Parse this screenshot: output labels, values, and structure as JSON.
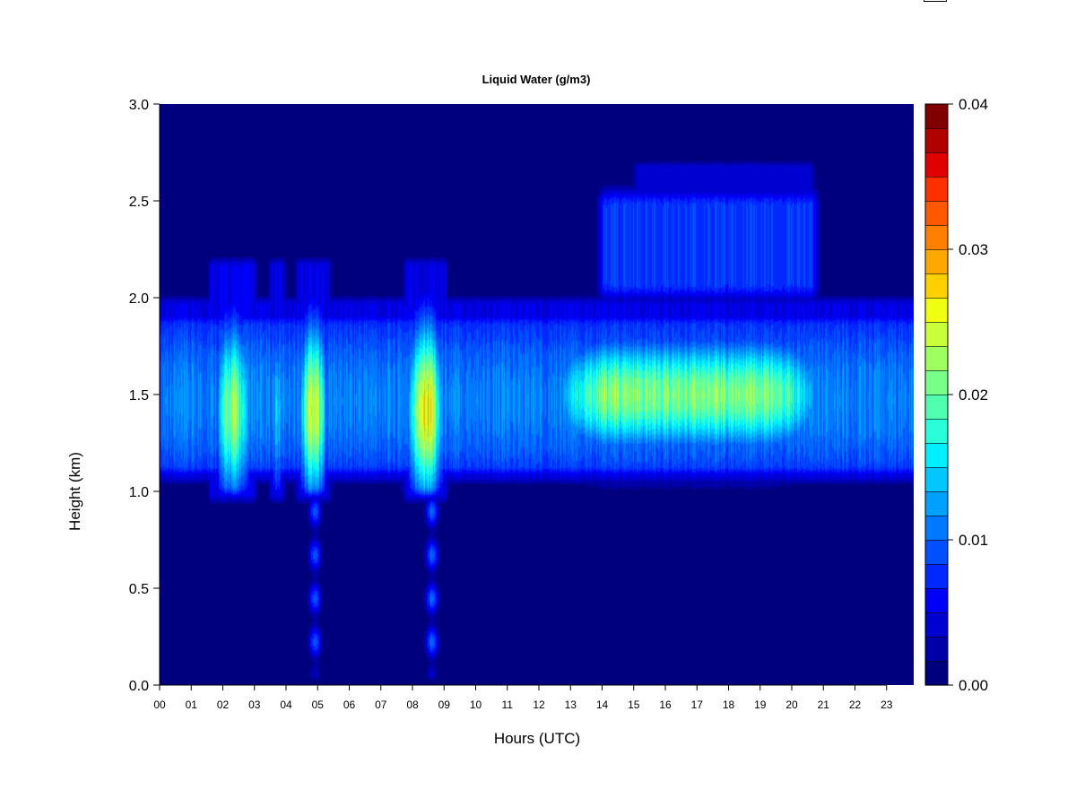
{
  "chart_data": {
    "type": "heatmap",
    "title": "Liquid Water (g/m3)",
    "xlabel": "Hours (UTC)",
    "ylabel": "Height (km)",
    "x_tick_labels": [
      "00",
      "01",
      "02",
      "03",
      "04",
      "05",
      "06",
      "07",
      "08",
      "09",
      "10",
      "11",
      "12",
      "13",
      "14",
      "15",
      "16",
      "17",
      "18",
      "19",
      "20",
      "21",
      "22",
      "23"
    ],
    "y_tick_labels": [
      "0.0",
      "0.5",
      "1.0",
      "1.5",
      "2.0",
      "2.5",
      "3.0"
    ],
    "xlim": [
      0,
      24
    ],
    "ylim": [
      0,
      3.0
    ],
    "colorbar": {
      "label_values": [
        "0.00",
        "0.01",
        "0.02",
        "0.03",
        "0.04"
      ],
      "range": [
        0,
        0.04
      ],
      "levels": 20,
      "colors": [
        "#00007F",
        "#0000A8",
        "#0000D1",
        "#0000F9",
        "#0028FF",
        "#0050FF",
        "#0078FF",
        "#00A0FF",
        "#00C8FF",
        "#00F0FF",
        "#28FFD8",
        "#50FFB0",
        "#78FF88",
        "#A0FF60",
        "#C8FF38",
        "#F0FF10",
        "#FFD000",
        "#FFA800",
        "#FF8000",
        "#FF5800",
        "#FF3000",
        "#E00000",
        "#B00000",
        "#800000"
      ]
    },
    "features": [
      {
        "name": "main_layer",
        "x_range": [
          0,
          23.9
        ],
        "height_km": [
          1.05,
          1.95
        ],
        "peak_g_m3": 0.015
      },
      {
        "name": "cell_02h",
        "x_range": [
          1.6,
          3.0
        ],
        "height_km": [
          0.95,
          2.2
        ],
        "peak_g_m3": 0.027
      },
      {
        "name": "cell_05h",
        "x_range": [
          4.2,
          5.5
        ],
        "height_km": [
          0.95,
          2.2
        ],
        "peak_g_m3": 0.031
      },
      {
        "name": "cell_08h",
        "x_range": [
          7.6,
          9.3
        ],
        "height_km": [
          0.95,
          2.2
        ],
        "peak_g_m3": 0.034
      },
      {
        "name": "afternoon_max",
        "x_range": [
          12.5,
          21.0
        ],
        "height_km": [
          1.1,
          1.95
        ],
        "peak_g_m3": 0.026
      },
      {
        "name": "upper_layer",
        "x_range": [
          13.7,
          21.0
        ],
        "height_km": [
          2.0,
          2.7
        ],
        "peak_g_m3": 0.01
      }
    ]
  }
}
